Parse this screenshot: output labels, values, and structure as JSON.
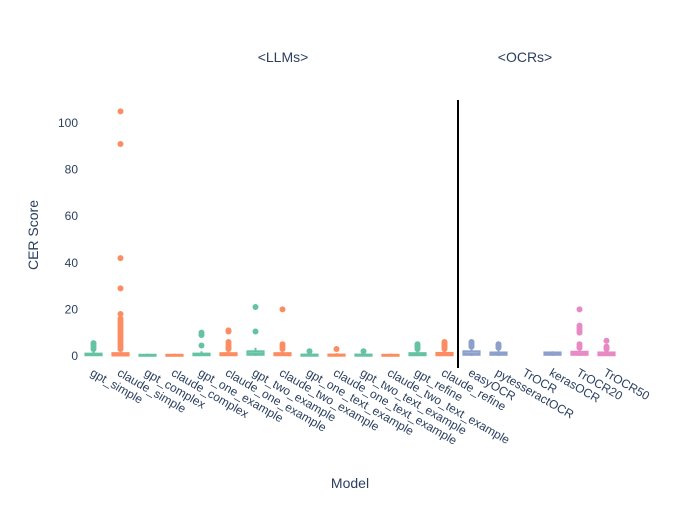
{
  "chart_data": {
    "type": "box",
    "x_title": "Model",
    "y_title": "CER Score",
    "annotations": [
      "<LLMs>",
      "<OCRs>"
    ],
    "categories": [
      "gpt_simple",
      "claude_simple",
      "gpt_complex",
      "claude_complex",
      "gpt_one_example",
      "claude_one_example",
      "gpt_two_example",
      "claude_two_example",
      "gpt_one_text_example",
      "claude_one_text_example",
      "gpt_two_text_example",
      "claude_two_text_example",
      "gpt_refine",
      "claude_refine",
      "easyOCR",
      "pytesseractOCR",
      "TrOCR",
      "kerasOCR",
      "TrOCR20",
      "TrOCR50"
    ],
    "boxes": [
      {
        "color": "#66c2a5",
        "lowerfence": 0,
        "q1": 0.3,
        "median": 0.6,
        "q3": 1.0,
        "upperfence": 2,
        "outliers": [
          3,
          4,
          5,
          5.5
        ]
      },
      {
        "color": "#fc8d62",
        "lowerfence": 0,
        "q1": 0.2,
        "median": 0.5,
        "q3": 1.2,
        "upperfence": 2.5,
        "outliers": [
          3,
          4,
          5,
          6,
          7,
          8,
          9,
          10,
          11,
          12,
          13,
          14,
          15,
          16,
          18,
          29,
          42,
          91,
          105
        ]
      },
      {
        "color": "#66c2a5",
        "lowerfence": 0,
        "q1": 0.1,
        "median": 0.3,
        "q3": 0.5,
        "upperfence": 1,
        "outliers": []
      },
      {
        "color": "#fc8d62",
        "lowerfence": 0,
        "q1": 0.1,
        "median": 0.3,
        "q3": 0.5,
        "upperfence": 1,
        "outliers": []
      },
      {
        "color": "#66c2a5",
        "lowerfence": 0,
        "q1": 0.3,
        "median": 0.6,
        "q3": 1,
        "upperfence": 2,
        "outliers": [
          4.5,
          9,
          10
        ]
      },
      {
        "color": "#fc8d62",
        "lowerfence": 0,
        "q1": 0.3,
        "median": 0.7,
        "q3": 1.2,
        "upperfence": 2.5,
        "outliers": [
          3,
          3.5,
          4,
          5,
          6,
          10.5,
          11
        ]
      },
      {
        "color": "#66c2a5",
        "lowerfence": 0,
        "q1": 0.5,
        "median": 1,
        "q3": 2,
        "upperfence": 3.5,
        "outliers": [
          10.5,
          21
        ]
      },
      {
        "color": "#fc8d62",
        "lowerfence": 0,
        "q1": 0.3,
        "median": 0.7,
        "q3": 1.2,
        "upperfence": 2.5,
        "outliers": [
          3,
          4,
          5,
          20
        ]
      },
      {
        "color": "#66c2a5",
        "lowerfence": 0,
        "q1": 0.1,
        "median": 0.3,
        "q3": 0.6,
        "upperfence": 1.2,
        "outliers": [
          2
        ]
      },
      {
        "color": "#fc8d62",
        "lowerfence": 0,
        "q1": 0.1,
        "median": 0.3,
        "q3": 0.6,
        "upperfence": 1.2,
        "outliers": [
          3
        ]
      },
      {
        "color": "#66c2a5",
        "lowerfence": 0,
        "q1": 0.1,
        "median": 0.3,
        "q3": 0.6,
        "upperfence": 1.2,
        "outliers": [
          2
        ]
      },
      {
        "color": "#fc8d62",
        "lowerfence": 0,
        "q1": 0.1,
        "median": 0.3,
        "q3": 0.5,
        "upperfence": 1,
        "outliers": []
      },
      {
        "color": "#66c2a5",
        "lowerfence": 0,
        "q1": 0.3,
        "median": 0.6,
        "q3": 1.2,
        "upperfence": 2.5,
        "outliers": [
          3,
          3.5,
          4,
          4.5,
          5
        ]
      },
      {
        "color": "#fc8d62",
        "lowerfence": 0,
        "q1": 0.3,
        "median": 0.7,
        "q3": 1.3,
        "upperfence": 2.5,
        "outliers": [
          3,
          3.5,
          4,
          4.5,
          5,
          5.5,
          6
        ]
      },
      {
        "color": "#8da0cb",
        "lowerfence": 0,
        "q1": 0.5,
        "median": 1,
        "q3": 2,
        "upperfence": 3.5,
        "outliers": [
          4,
          4.5,
          5,
          5.5,
          6
        ]
      },
      {
        "color": "#8da0cb",
        "lowerfence": 0,
        "q1": 0.5,
        "median": 1,
        "q3": 1.5,
        "upperfence": 3,
        "outliers": [
          3.5,
          4,
          4.5,
          5
        ]
      },
      null,
      {
        "color": "#8da0cb",
        "lowerfence": 0,
        "q1": 0.5,
        "median": 1,
        "q3": 1.5,
        "upperfence": 2,
        "outliers": []
      },
      {
        "color": "#e78ac3",
        "lowerfence": 0,
        "q1": 0.5,
        "median": 1,
        "q3": 1.8,
        "upperfence": 3,
        "outliers": [
          3.5,
          4,
          5,
          10,
          11,
          12,
          13,
          20
        ]
      },
      {
        "color": "#e78ac3",
        "lowerfence": 0,
        "q1": 0.3,
        "median": 0.8,
        "q3": 1.5,
        "upperfence": 2.5,
        "outliers": [
          3,
          3.5,
          4,
          6.5
        ]
      }
    ],
    "ylim": [
      -5,
      110
    ],
    "yticks": [
      0,
      20,
      40,
      60,
      80,
      100
    ],
    "grid": false
  }
}
